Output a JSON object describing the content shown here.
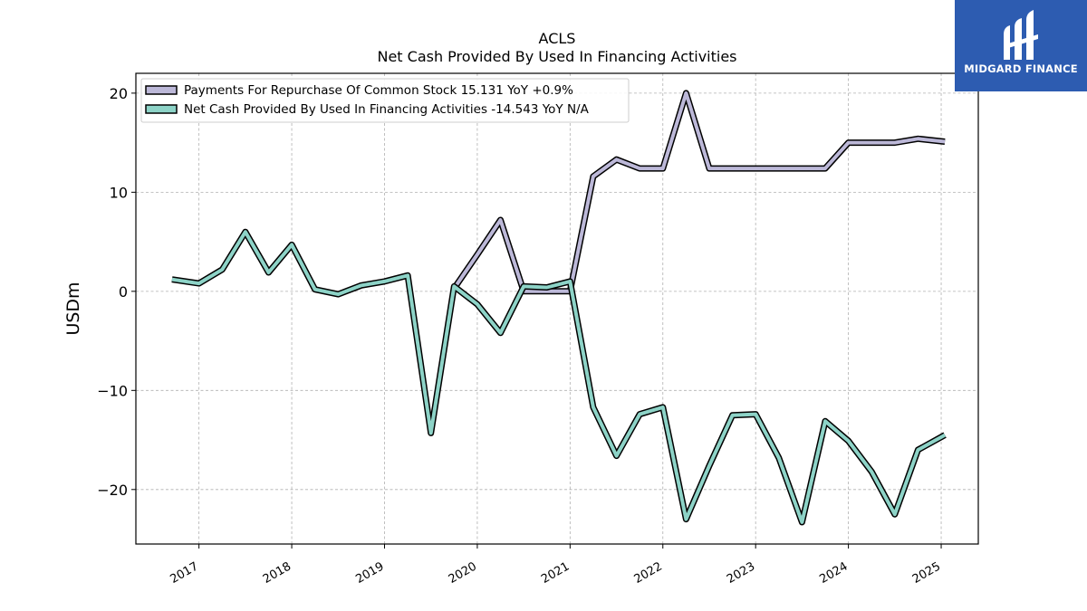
{
  "chart_data": {
    "type": "line",
    "title": "ACLS",
    "subtitle": "Net Cash Provided By Used In Financing Activities",
    "ylabel": "USDm",
    "xlabel": "",
    "ylim": [
      -25.5,
      22
    ],
    "xlim": [
      2016.32,
      2025.4
    ],
    "yticks": [
      20,
      10,
      0,
      -10,
      -20
    ],
    "ytick_labels": [
      "20",
      "10",
      "0",
      "−10",
      "−20"
    ],
    "xticks": [
      2017,
      2018,
      2019,
      2020,
      2021,
      2022,
      2023,
      2024,
      2025
    ],
    "xtick_labels": [
      "2017",
      "2018",
      "2019",
      "2020",
      "2021",
      "2022",
      "2023",
      "2024",
      "2025"
    ],
    "grid": true,
    "legend_position": "top-left",
    "series": [
      {
        "name": "Payments For Repurchase Of Common Stock  15.131 YoY +0.9%",
        "color": "#bcb8d8",
        "x": [
          2019.75,
          2020.0,
          2020.25,
          2020.5,
          2020.75,
          2021.0,
          2021.25,
          2021.5,
          2021.75,
          2022.0,
          2022.25,
          2022.5,
          2022.75,
          2023.0,
          2023.25,
          2023.5,
          2023.75,
          2024.0,
          2024.25,
          2024.5,
          2024.75,
          2025.04
        ],
        "values": [
          0.3,
          3.7,
          7.2,
          0.0,
          0.0,
          0.0,
          11.6,
          13.3,
          12.4,
          12.4,
          20.0,
          12.4,
          12.4,
          12.4,
          12.4,
          12.4,
          12.4,
          15.0,
          15.0,
          15.0,
          15.4,
          15.1
        ]
      },
      {
        "name": "Net Cash Provided By Used In Financing Activities  -14.543 YoY N/A",
        "color": "#8dd3c7",
        "x": [
          2016.71,
          2017.0,
          2017.25,
          2017.5,
          2017.75,
          2018.0,
          2018.25,
          2018.5,
          2018.75,
          2019.0,
          2019.25,
          2019.5,
          2019.75,
          2020.0,
          2020.25,
          2020.5,
          2020.75,
          2021.0,
          2021.25,
          2021.5,
          2021.75,
          2022.0,
          2022.25,
          2022.5,
          2022.75,
          2023.0,
          2023.25,
          2023.5,
          2023.75,
          2024.0,
          2024.25,
          2024.5,
          2024.75,
          2025.04
        ],
        "values": [
          1.2,
          0.8,
          2.2,
          6.0,
          1.9,
          4.7,
          0.2,
          -0.3,
          0.6,
          1.0,
          1.6,
          -14.3,
          0.5,
          -1.3,
          -4.2,
          0.5,
          0.4,
          1.0,
          -11.7,
          -16.6,
          -12.4,
          -11.7,
          -23.0,
          -17.6,
          -12.5,
          -12.4,
          -16.8,
          -23.3,
          -13.1,
          -15.1,
          -18.2,
          -22.5,
          -16.0,
          -14.5
        ]
      }
    ]
  },
  "logo": {
    "text": "MIDGARD FINANCE",
    "background": "#2d5cb1"
  }
}
